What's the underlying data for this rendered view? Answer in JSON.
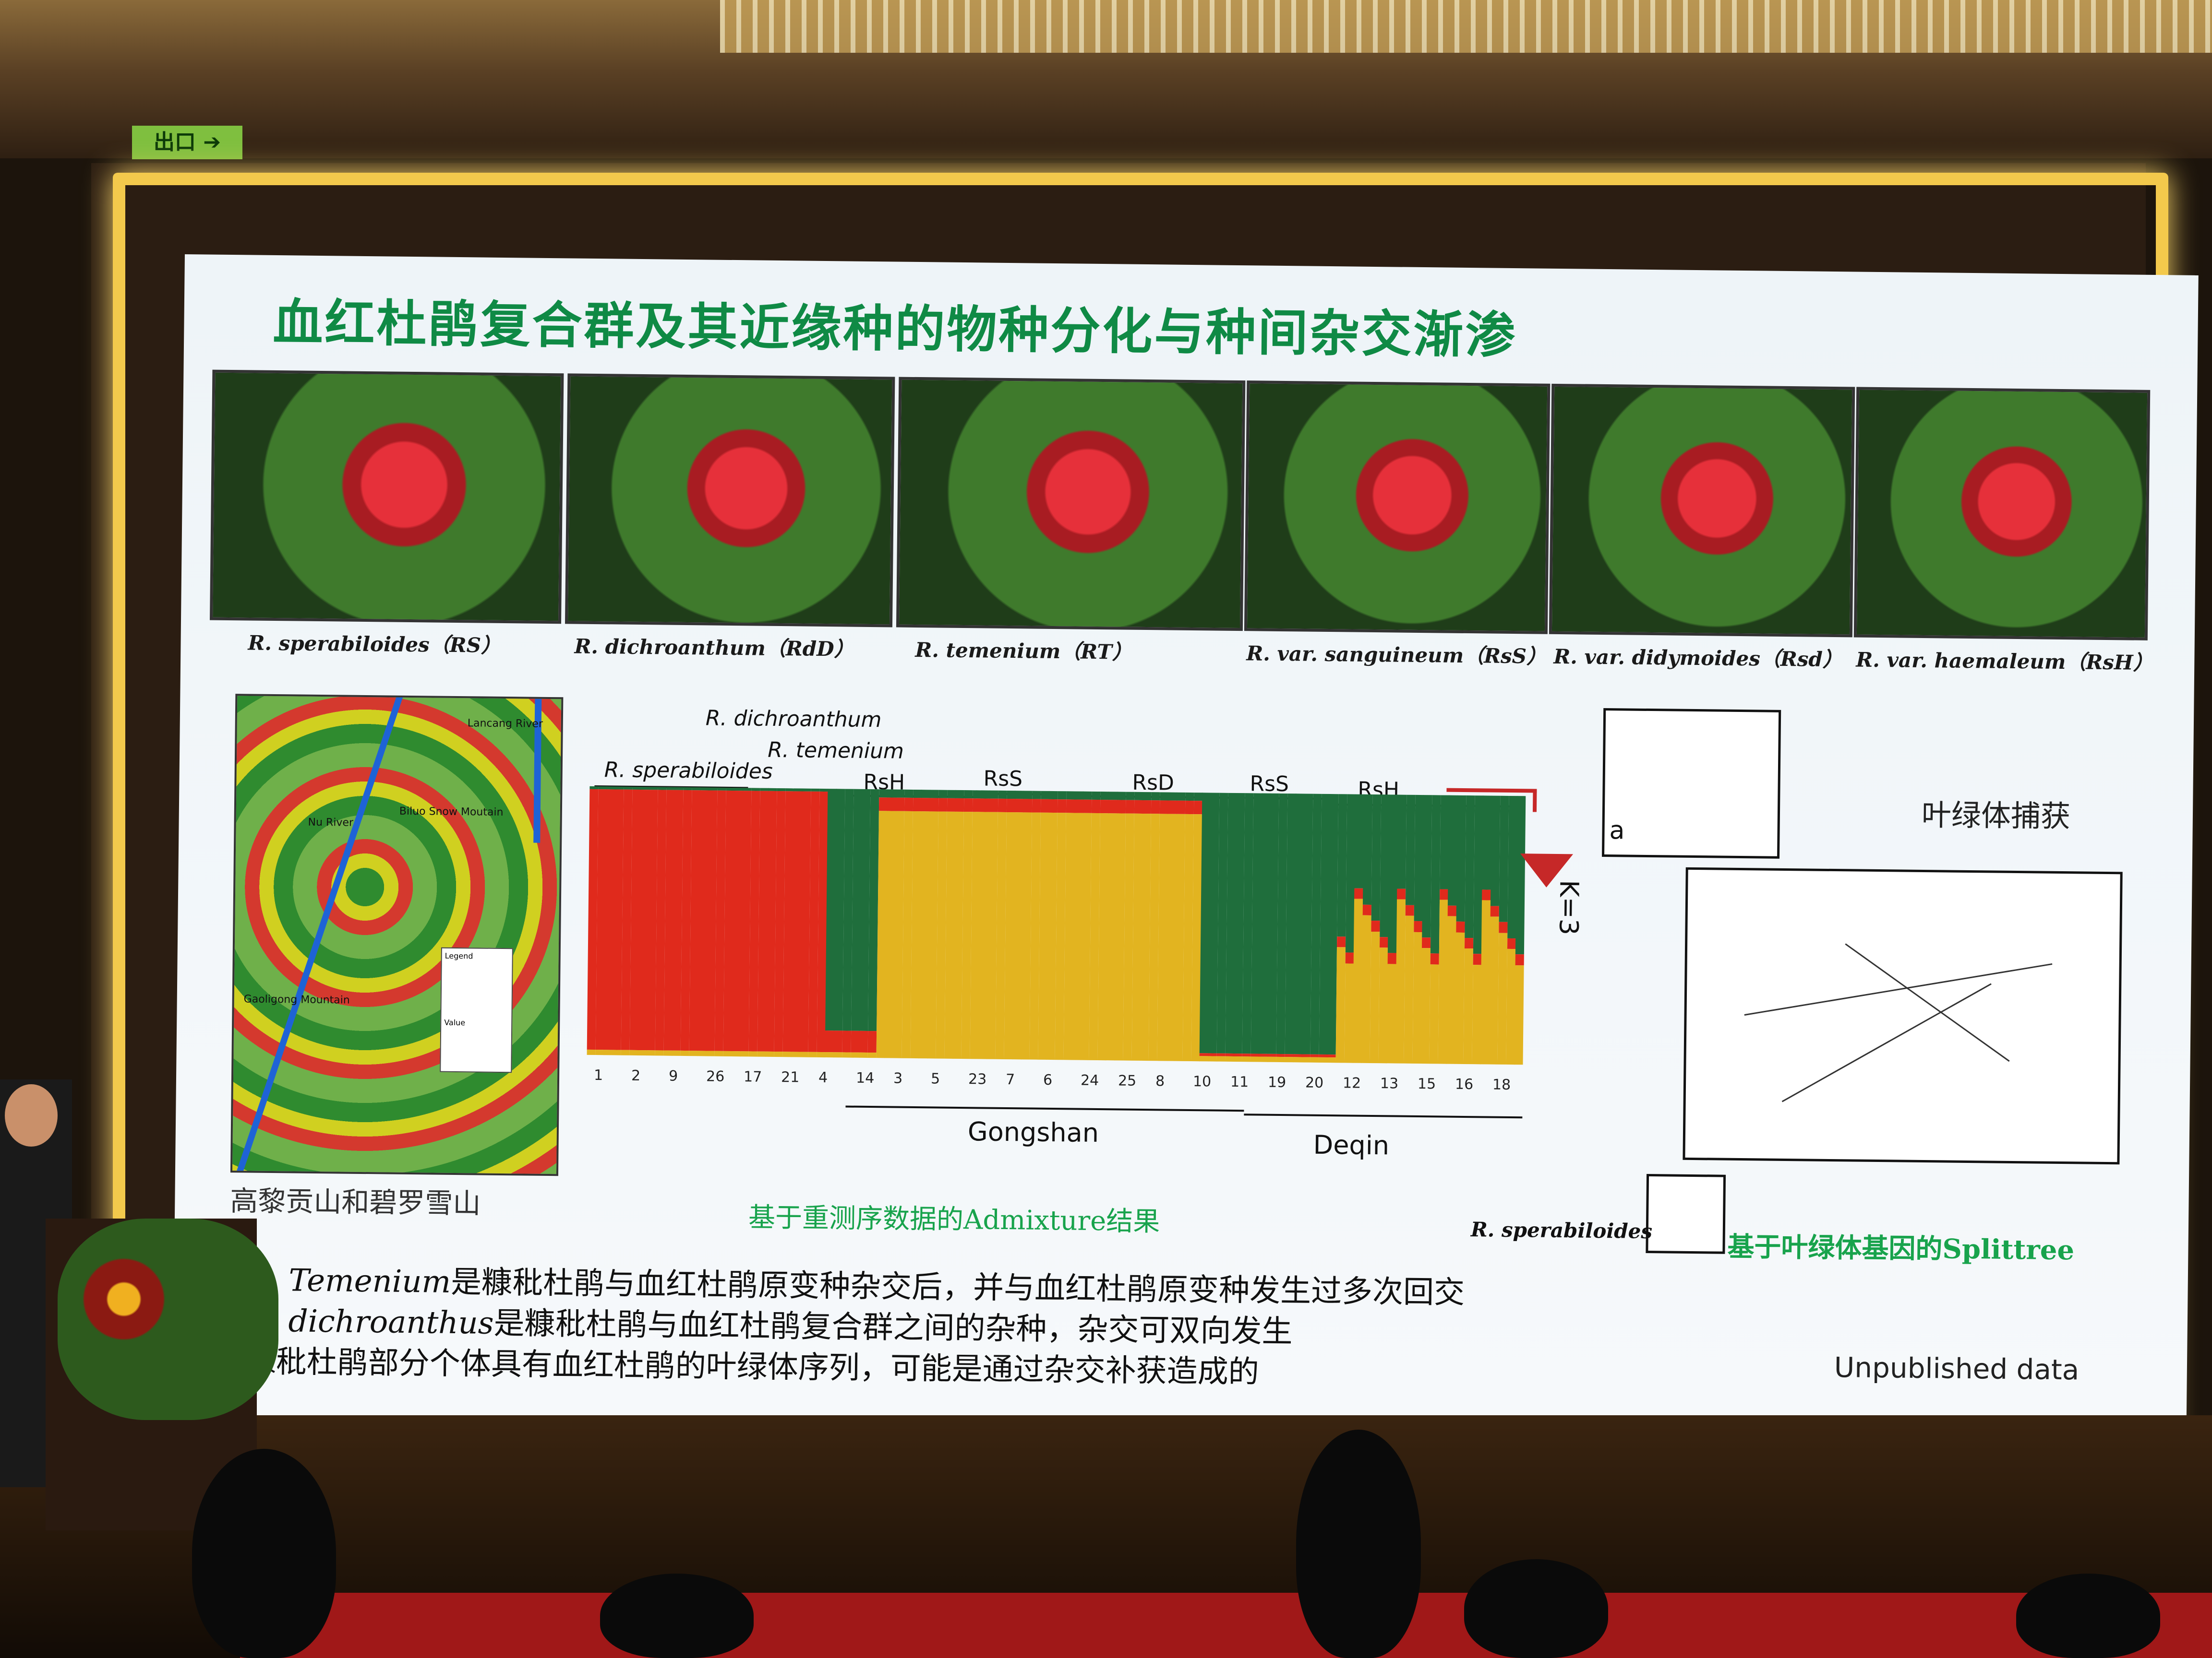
{
  "exit_sign": "出口 ➔",
  "slide": {
    "title": "血红杜鹃复合群及其近缘种的物种分化与种间杂交渐渗",
    "photos": [
      {
        "caption": "R. sperabiloides（RS）"
      },
      {
        "caption": "R. dichroanthum（RdD）"
      },
      {
        "caption": "R. temenium（RT）"
      },
      {
        "caption": "R. var. sanguineum（RsS）"
      },
      {
        "caption": "R. var. didymoides（Rsd）"
      },
      {
        "caption": "R. var. haemaleum（RsH）"
      }
    ],
    "map": {
      "labels": {
        "lancang": "Lancang River",
        "nu": "Nu River",
        "biluo": "Biluo Snow Moutain",
        "gaoligong": "Gaoligong Mountain",
        "legend": "Legend",
        "value": "Value"
      },
      "caption": "高黎贡山和碧罗雪山"
    },
    "admixture": {
      "groups_top": [
        {
          "label": "R. dichroanthum",
          "italic": true
        },
        {
          "label": "R. temenium",
          "italic": true
        },
        {
          "label": "R. sperabiloides",
          "italic": true
        },
        {
          "label": "RsH",
          "italic": true
        },
        {
          "label": "RsS",
          "italic": true
        },
        {
          "label": "RsD",
          "italic": true
        },
        {
          "label": "RsS",
          "italic": true
        },
        {
          "label": "RsH",
          "italic": true
        }
      ],
      "ticks": [
        "1",
        "2",
        "9",
        "26",
        "17",
        "21",
        "4",
        "14",
        "3",
        "5",
        "23",
        "7",
        "6",
        "24",
        "25",
        "8",
        "10",
        "11",
        "19",
        "20",
        "12",
        "13",
        "15",
        "16",
        "18"
      ],
      "regions": [
        "Gongshan",
        "Deqin"
      ],
      "k_label": "K=3",
      "caption": "基于重测序数据的Admixture结果",
      "colors": {
        "cluster1": "#1f6e3c",
        "cluster2": "#e02a1c",
        "cluster3": "#e2b420"
      }
    },
    "splittree": {
      "panel_label": "a",
      "capture_label": "叶绿体捕获",
      "sperabiloides_label": "R. sperabiloides",
      "caption": "基于叶绿体基因的Splittree"
    },
    "bullets": [
      {
        "italic": "R. Temenium",
        "rest": "是糠秕杜鹃与血红杜鹃原变种杂交后，并与血红杜鹃原变种发生过多次回交"
      },
      {
        "italic": "R. dichroanthus",
        "rest": "是糠秕杜鹃与血红杜鹃复合群之间的杂种，杂交可双向发生"
      },
      {
        "italic": "",
        "rest": "糠秕杜鹃部分个体具有血红杜鹃的叶绿体序列，可能是通过杂交补获造成的"
      }
    ],
    "unpublished": "Unpublished data"
  }
}
